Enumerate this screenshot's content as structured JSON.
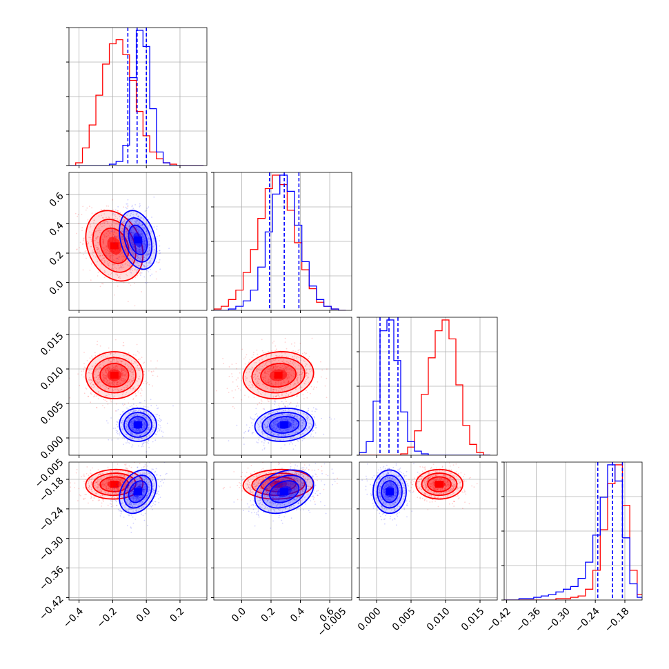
{
  "chart_data": {
    "type": "corner",
    "grid": true,
    "colors": {
      "series_a": "#ff0000",
      "series_b": "#0000ff",
      "quantile_line": "#0000ff"
    },
    "params": [
      {
        "range": [
          -0.46,
          0.36
        ]
      },
      {
        "range": [
          -0.19,
          0.75
        ]
      },
      {
        "range": [
          -0.0025,
          0.0175
        ]
      },
      {
        "range": [
          -0.425,
          -0.145
        ]
      }
    ],
    "axis_ticks": {
      "x": [
        {
          "values": [
            -0.4,
            -0.2,
            0.0,
            0.2
          ],
          "labels": [
            "−0.4",
            "−0.2",
            "0.0",
            "0.2"
          ]
        },
        {
          "values": [
            0.0,
            0.2,
            0.4,
            0.6
          ],
          "labels": [
            "0.0",
            "0.2",
            "0.4",
            "0.6"
          ]
        },
        {
          "values": [
            -0.005,
            0.0,
            0.005,
            0.01,
            0.015
          ],
          "labels": [
            "−0.005",
            "0.000",
            "0.005",
            "0.010",
            "0.015"
          ]
        },
        {
          "values": [
            -0.42,
            -0.36,
            -0.3,
            -0.24,
            -0.18
          ],
          "labels": [
            "−0.42",
            "−0.36",
            "−0.30",
            "−0.24",
            "−0.18"
          ]
        }
      ],
      "y": [
        null,
        {
          "values": [
            0.0,
            0.2,
            0.4,
            0.6
          ],
          "labels": [
            "0.0",
            "0.2",
            "0.4",
            "0.6"
          ]
        },
        {
          "values": [
            0.0,
            0.005,
            0.01,
            0.015
          ],
          "labels": [
            "0.000",
            "0.005",
            "0.010",
            "0.015"
          ]
        },
        {
          "values": [
            -0.42,
            -0.36,
            -0.3,
            -0.24,
            -0.18,
            -0.005
          ],
          "labels": [
            "−0.42",
            "−0.36",
            "−0.30",
            "−0.24",
            "−0.18",
            "−0.005"
          ]
        }
      ]
    },
    "series": [
      {
        "color": "#ff0000",
        "means": [
          -0.19,
          0.25,
          0.0091,
          -0.19
        ],
        "sds": [
          0.085,
          0.12,
          0.0017,
          0.015
        ],
        "corr": [
          [
            1,
            -0.25,
            0,
            0.05
          ],
          [
            -0.25,
            1,
            0.1,
            0.08
          ],
          [
            0,
            0.1,
            1,
            0
          ],
          [
            0.05,
            0.08,
            0,
            1
          ]
        ],
        "histograms": [
          {
            "bins": [
              -0.46,
              -0.42,
              -0.38,
              -0.34,
              -0.3,
              -0.26,
              -0.22,
              -0.18,
              -0.14,
              -0.1,
              -0.06,
              -0.02,
              0.02,
              0.06,
              0.1,
              0.14,
              0.18,
              0.22,
              0.26,
              0.3,
              0.34
            ],
            "counts": [
              0,
              2,
              13,
              30,
              52,
              75,
              90,
              93,
              82,
              63,
              40,
              22,
              10,
              5,
              2,
              1,
              0,
              0,
              0,
              0
            ]
          },
          {
            "bins": [
              -0.19,
              -0.14,
              -0.09,
              -0.04,
              0.01,
              0.06,
              0.11,
              0.16,
              0.21,
              0.26,
              0.31,
              0.36,
              0.41,
              0.46,
              0.51,
              0.56,
              0.61,
              0.66,
              0.71
            ],
            "counts": [
              1,
              3,
              8,
              15,
              28,
              45,
              68,
              90,
              100,
              93,
              74,
              50,
              30,
              16,
              6,
              3,
              1,
              0
            ]
          },
          {
            "bins": [
              -0.0025,
              -0.0015,
              -0.0005,
              0.0005,
              0.0015,
              0.0025,
              0.0035,
              0.0045,
              0.0055,
              0.0065,
              0.0075,
              0.0085,
              0.0095,
              0.0105,
              0.0115,
              0.0125,
              0.0135,
              0.0145,
              0.0155,
              0.0165
            ],
            "counts": [
              0,
              0,
              0,
              0,
              0,
              0,
              1,
              6,
              18,
              45,
              72,
              92,
              100,
              86,
              52,
              22,
              8,
              2,
              0
            ]
          },
          {
            "bins": [
              -0.425,
              -0.41,
              -0.395,
              -0.38,
              -0.365,
              -0.35,
              -0.335,
              -0.32,
              -0.305,
              -0.29,
              -0.275,
              -0.26,
              -0.245,
              -0.23,
              -0.215,
              -0.2,
              -0.185,
              -0.17,
              -0.155,
              -0.14
            ],
            "counts": [
              0,
              0,
              0,
              0,
              0,
              0,
              0,
              1,
              1,
              2,
              3,
              8,
              22,
              52,
              86,
              100,
              70,
              22,
              4
            ]
          }
        ]
      },
      {
        "color": "#0000ff",
        "means": [
          -0.05,
          0.29,
          0.0019,
          -0.205
        ],
        "sds": [
          0.055,
          0.1,
          0.0012,
          0.022
        ],
        "corr": [
          [
            1,
            -0.3,
            0,
            0.3
          ],
          [
            -0.3,
            1,
            0.1,
            0.3
          ],
          [
            0,
            0.1,
            1,
            0
          ],
          [
            0.3,
            0.3,
            0,
            1
          ]
        ],
        "histograms": [
          {
            "bins": [
              -0.46,
              -0.42,
              -0.38,
              -0.34,
              -0.3,
              -0.26,
              -0.22,
              -0.18,
              -0.14,
              -0.1,
              -0.06,
              -0.02,
              0.02,
              0.06,
              0.1,
              0.14,
              0.18,
              0.22,
              0.26,
              0.3,
              0.34
            ],
            "counts": [
              0,
              0,
              0,
              0,
              0,
              0,
              1,
              3,
              15,
              65,
              100,
              88,
              42,
              10,
              2,
              0,
              0,
              0,
              0,
              0
            ]
          },
          {
            "bins": [
              -0.19,
              -0.14,
              -0.09,
              -0.04,
              0.01,
              0.06,
              0.11,
              0.16,
              0.21,
              0.26,
              0.31,
              0.36,
              0.41,
              0.46,
              0.51,
              0.56,
              0.61,
              0.66,
              0.71
            ],
            "counts": [
              0,
              0,
              1,
              3,
              7,
              15,
              32,
              58,
              86,
              100,
              88,
              63,
              36,
              18,
              8,
              3,
              1,
              0
            ]
          },
          {
            "bins": [
              -0.0025,
              -0.0015,
              -0.0005,
              0.0005,
              0.0015,
              0.0025,
              0.0035,
              0.0045,
              0.0055,
              0.0065,
              0.0075,
              0.0085,
              0.0095,
              0.0105,
              0.0115,
              0.0125,
              0.0135,
              0.0145,
              0.0155,
              0.0165
            ],
            "counts": [
              2,
              10,
              40,
              92,
              100,
              70,
              32,
              10,
              3,
              1,
              0,
              0,
              0,
              0,
              0,
              0,
              0,
              0,
              0
            ]
          },
          {
            "bins": [
              -0.425,
              -0.41,
              -0.395,
              -0.38,
              -0.365,
              -0.35,
              -0.335,
              -0.32,
              -0.305,
              -0.29,
              -0.275,
              -0.26,
              -0.245,
              -0.23,
              -0.215,
              -0.2,
              -0.185,
              -0.17,
              -0.155,
              -0.14
            ],
            "counts": [
              0,
              0,
              1,
              1,
              2,
              3,
              4,
              6,
              8,
              10,
              16,
              28,
              48,
              76,
              100,
              88,
              46,
              12,
              2
            ]
          }
        ]
      }
    ],
    "quantile_lines": [
      [
        -0.11,
        -0.055,
        0.0
      ],
      [
        0.19,
        0.29,
        0.39
      ],
      [
        0.0005,
        0.0018,
        0.0031
      ],
      [
        -0.235,
        -0.205,
        -0.185
      ]
    ]
  }
}
